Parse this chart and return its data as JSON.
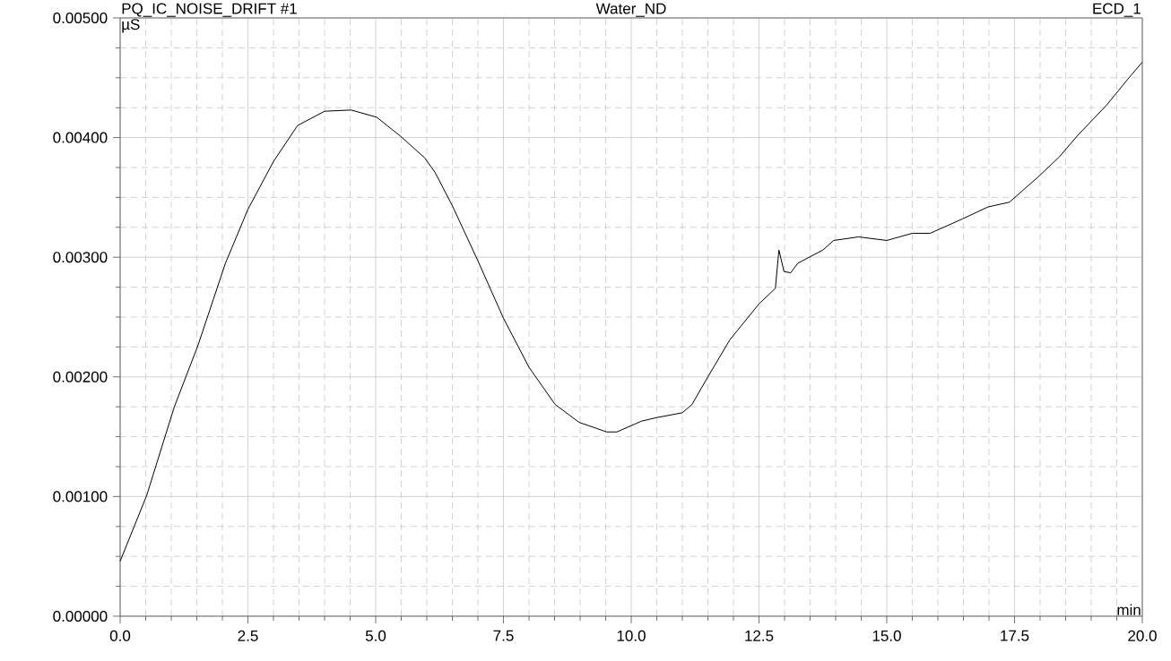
{
  "chart_data": {
    "type": "line",
    "title": "Water_ND",
    "annotations": [
      "PQ_IC_NOISE_DRIFT #1",
      "ECD_1"
    ],
    "xlabel": "min",
    "ylabel": "µS",
    "xlim": [
      0,
      20
    ],
    "ylim": [
      0,
      0.005
    ],
    "xticks": [
      {
        "value": 0,
        "label": "0.0"
      },
      {
        "value": 2.5,
        "label": "2.5"
      },
      {
        "value": 5,
        "label": "5.0"
      },
      {
        "value": 7.5,
        "label": "7.5"
      },
      {
        "value": 10,
        "label": "10.0"
      },
      {
        "value": 12.5,
        "label": "12.5"
      },
      {
        "value": 15,
        "label": "15.0"
      },
      {
        "value": 17.5,
        "label": "17.5"
      },
      {
        "value": 20,
        "label": "20.0"
      }
    ],
    "yticks": [
      {
        "value": 0,
        "label": "0.00000"
      },
      {
        "value": 0.001,
        "label": "0.00100"
      },
      {
        "value": 0.002,
        "label": "0.00200"
      },
      {
        "value": 0.003,
        "label": "0.00300"
      },
      {
        "value": 0.004,
        "label": "0.00400"
      },
      {
        "value": 0.005,
        "label": "0.00500"
      }
    ],
    "grid": true,
    "series": [
      {
        "color": "#000000",
        "x": [
          0,
          0.52,
          1.06,
          1.52,
          2.06,
          2.5,
          3.0,
          3.47,
          4.0,
          4.52,
          5.02,
          5.49,
          5.96,
          6.16,
          6.5,
          7.0,
          7.5,
          8.0,
          8.51,
          8.98,
          9.52,
          9.72,
          10.2,
          10.5,
          11.0,
          11.19,
          11.5,
          11.93,
          12.5,
          12.82,
          12.89,
          12.99,
          13.12,
          13.26,
          13.75,
          13.96,
          14.45,
          15.0,
          15.5,
          15.85,
          16.48,
          16.98,
          17.4,
          17.96,
          18.38,
          18.74,
          19.3,
          19.72,
          20.0
        ],
        "values": [
          0.00046,
          0.00101,
          0.00175,
          0.00226,
          0.00295,
          0.0034,
          0.0038,
          0.0041,
          0.00422,
          0.00423,
          0.00417,
          0.00401,
          0.00383,
          0.00371,
          0.00343,
          0.00297,
          0.00249,
          0.00208,
          0.00177,
          0.00162,
          0.00154,
          0.00154,
          0.00163,
          0.00166,
          0.0017,
          0.00177,
          0.002,
          0.00231,
          0.00261,
          0.00274,
          0.00306,
          0.00288,
          0.00287,
          0.00295,
          0.00306,
          0.00314,
          0.00317,
          0.00314,
          0.0032,
          0.0032,
          0.00332,
          0.00342,
          0.00346,
          0.00367,
          0.00384,
          0.00402,
          0.00427,
          0.00449,
          0.00463
        ]
      }
    ]
  }
}
